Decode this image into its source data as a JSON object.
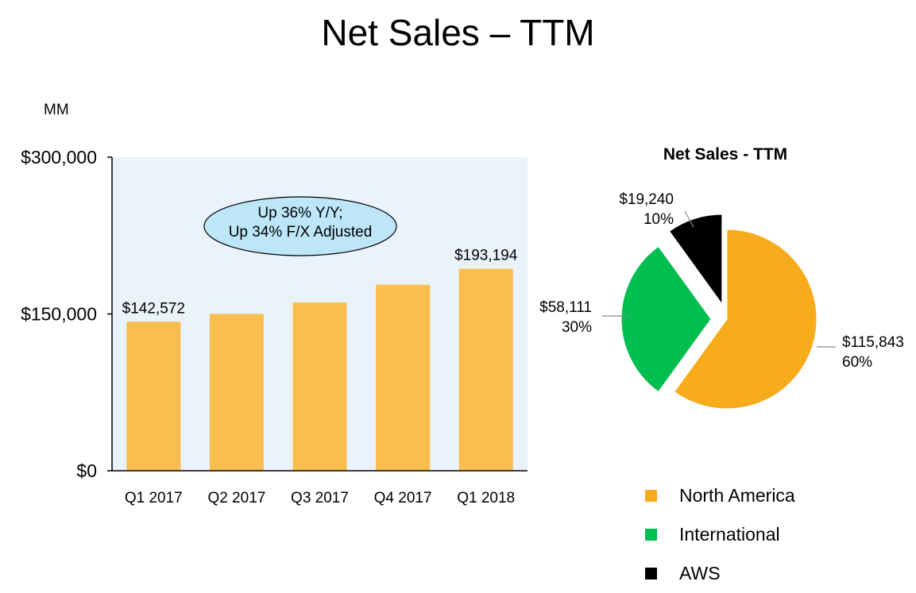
{
  "title": "Net Sales – TTM",
  "colors": {
    "bar": "#F9BE4D",
    "plot_bg": "#EAF2FC",
    "north_america": "#F8AB1B",
    "international": "#00BE50",
    "aws": "#000000",
    "callout_fill": "#BDE6F9"
  },
  "chart_data": [
    {
      "type": "bar",
      "unit_label": "MM",
      "categories": [
        "Q1 2017",
        "Q2 2017",
        "Q3 2017",
        "Q4 2017",
        "Q1 2018"
      ],
      "values": [
        142572,
        150000,
        161000,
        178000,
        193194
      ],
      "data_labels": [
        "$142,572",
        "",
        "",
        "",
        "$193,194"
      ],
      "ylim": [
        0,
        300000
      ],
      "yticks": [
        0,
        150000,
        300000
      ],
      "ytick_labels": [
        "$0",
        "$150,000",
        "$300,000"
      ],
      "callout": [
        "Up 36% Y/Y;",
        "Up 34% F/X Adjusted"
      ]
    },
    {
      "type": "pie",
      "title": "Net Sales - TTM",
      "slices": [
        {
          "name": "North America",
          "value": 115843,
          "value_label": "$115,843",
          "percent_label": "60%",
          "exploded": false
        },
        {
          "name": "International",
          "value": 58111,
          "value_label": "$58,111",
          "percent_label": "30%",
          "exploded": true
        },
        {
          "name": "AWS",
          "value": 19240,
          "value_label": "$19,240",
          "percent_label": "10%",
          "exploded": true
        }
      ],
      "legend_position": "bottom"
    }
  ]
}
